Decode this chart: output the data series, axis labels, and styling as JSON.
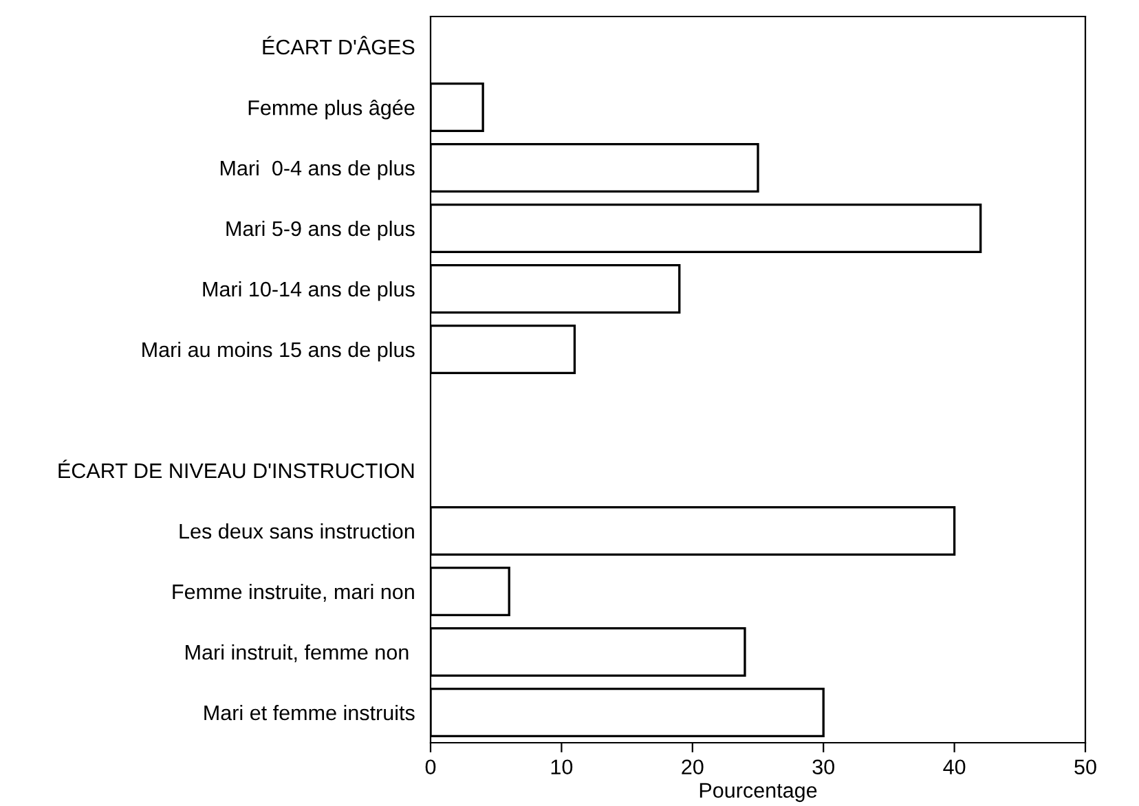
{
  "chart_data": {
    "type": "bar",
    "orientation": "horizontal",
    "xlabel": "Pourcentage",
    "categories": [
      "ÉCART D'ÂGES",
      "Femme plus âgée",
      "Mari  0-4 ans de plus",
      "Mari 5-9 ans de plus",
      "Mari 10-14 ans de plus",
      "Mari au moins 15 ans de plus",
      null,
      "ÉCART DE NIVEAU D'INSTRUCTION",
      "Les deux sans instruction",
      "Femme instruite, mari non",
      "Mari instruit, femme non ",
      "Mari et femme instruits"
    ],
    "values": [
      null,
      4,
      25,
      42,
      19,
      11,
      null,
      null,
      40,
      6,
      24,
      30
    ],
    "color": "#ffffff",
    "xlim": [
      0,
      50
    ],
    "xticks": [
      0,
      10,
      20,
      30,
      40,
      50
    ],
    "grid": false
  }
}
